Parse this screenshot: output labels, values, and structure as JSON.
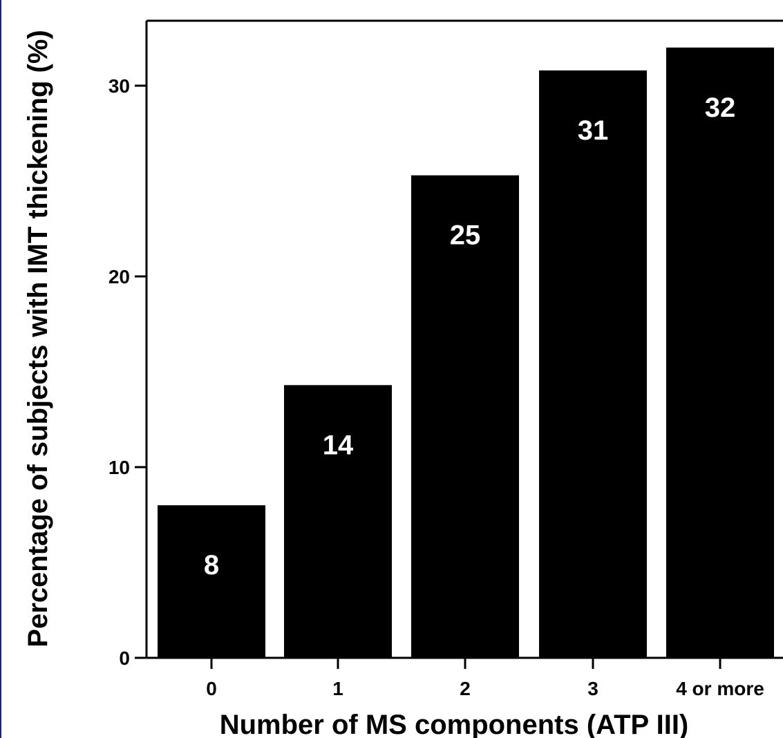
{
  "chart_data": {
    "type": "bar",
    "categories": [
      "0",
      "1",
      "2",
      "3",
      "4 or more"
    ],
    "values": [
      8,
      14.3,
      25.3,
      30.8,
      32
    ],
    "data_labels": [
      "8",
      "14",
      "25",
      "31",
      "32"
    ],
    "xlabel": "Number of MS components (ATP III)",
    "ylabel": "Percentage of subjects with IMT thickening (%)",
    "yticks": [
      0,
      10,
      20,
      30
    ],
    "ylim": [
      0,
      33
    ],
    "grid": false,
    "legend": "none",
    "colors": {
      "bar": "#000000",
      "bar_label": "#ffffff",
      "axis": "#000000",
      "left_edge": "#1a237e"
    }
  }
}
